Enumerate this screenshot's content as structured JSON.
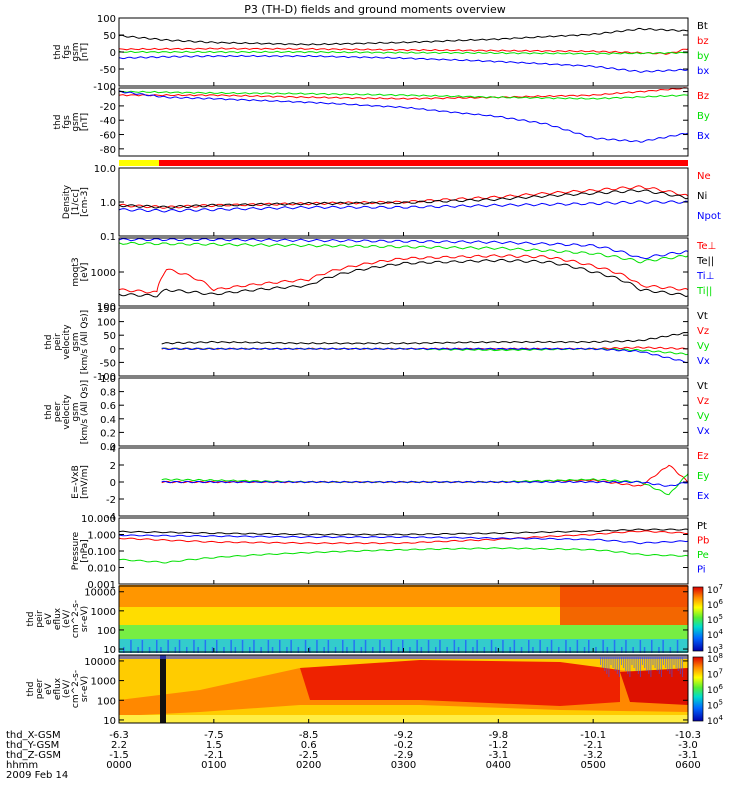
{
  "title": "P3 (TH-D) fields and ground moments overview",
  "colors": {
    "black": "#000000",
    "red": "#ff0000",
    "green": "#00e000",
    "blue": "#0000ff",
    "yellow": "#ffff00",
    "frame": "#000000"
  },
  "chart_data": [
    {
      "type": "line",
      "ylabel": [
        "thd",
        "fgs",
        "gsm",
        "[nT]"
      ],
      "ylim": [
        -100,
        100
      ],
      "log": false,
      "ticks": [
        "100",
        "50",
        "0",
        "-50",
        "-100"
      ],
      "tick_values": [
        100,
        50,
        0,
        -50,
        -100
      ],
      "legend": [
        [
          "Bt",
          "black"
        ],
        [
          "bz",
          "red"
        ],
        [
          "by",
          "green"
        ],
        [
          "bx",
          "blue"
        ]
      ],
      "series": [
        {
          "name": "Bt",
          "color": "black",
          "x": [
            0,
            0.5,
            1,
            2,
            3,
            4,
            5,
            5.5,
            6
          ],
          "y": [
            48,
            35,
            28,
            22,
            28,
            38,
            52,
            68,
            62
          ]
        },
        {
          "name": "bz",
          "color": "red",
          "x": [
            0,
            1,
            2,
            3,
            4,
            5,
            5.8,
            6
          ],
          "y": [
            8,
            10,
            9,
            6,
            4,
            2,
            -5,
            10
          ]
        },
        {
          "name": "by",
          "color": "green",
          "x": [
            0,
            1,
            2,
            3,
            4,
            5,
            6
          ],
          "y": [
            0,
            0,
            0,
            -2,
            -3,
            -5,
            -2
          ]
        },
        {
          "name": "bx",
          "color": "blue",
          "x": [
            0,
            0.5,
            1,
            2,
            3,
            4,
            5,
            5.5,
            6
          ],
          "y": [
            -18,
            -14,
            -12,
            -12,
            -18,
            -28,
            -42,
            -58,
            -52
          ]
        }
      ]
    },
    {
      "type": "line",
      "ylabel": [
        "thd",
        "fgs",
        "gsm",
        "[nT]"
      ],
      "ylim": [
        -90,
        5
      ],
      "log": false,
      "ticks": [
        "0",
        "-20",
        "-40",
        "-60",
        "-80"
      ],
      "tick_values": [
        0,
        -20,
        -40,
        -60,
        -80
      ],
      "legend": [
        [
          "Bz",
          "red"
        ],
        [
          "By",
          "green"
        ],
        [
          "Bx",
          "blue"
        ]
      ],
      "series": [
        {
          "name": "Bz",
          "color": "red",
          "x": [
            0,
            1,
            2,
            3,
            4,
            5,
            6
          ],
          "y": [
            -5,
            -5,
            -8,
            -10,
            -8,
            -5,
            5
          ]
        },
        {
          "name": "By",
          "color": "green",
          "x": [
            0,
            1,
            2,
            3,
            4,
            5,
            6
          ],
          "y": [
            0,
            -2,
            -3,
            -5,
            -8,
            -10,
            -5
          ]
        },
        {
          "name": "Bx",
          "color": "blue",
          "x": [
            0,
            0.5,
            1,
            2,
            3,
            4,
            4.5,
            5,
            5.5,
            6
          ],
          "y": [
            0,
            -8,
            -10,
            -15,
            -22,
            -35,
            -45,
            -65,
            -70,
            -58
          ]
        }
      ]
    },
    {
      "type": "line",
      "ylabel": [
        "Density",
        "[1/cc]",
        "[cm-3]"
      ],
      "ylim": [
        0.1,
        10
      ],
      "log": true,
      "ticks": [
        "10.0",
        "1.0",
        "0.1"
      ],
      "tick_values": [
        10,
        1,
        0.1
      ],
      "legend": [
        [
          "Ne",
          "red"
        ],
        [
          "Ni",
          "black"
        ],
        [
          "Npot",
          "blue"
        ]
      ],
      "series": [
        {
          "name": "Ne",
          "color": "red",
          "x": [
            0,
            0.5,
            1,
            2,
            3,
            4,
            5,
            5.5,
            6
          ],
          "y": [
            0.8,
            0.7,
            0.8,
            0.9,
            1.0,
            1.4,
            2.2,
            2.8,
            1.5
          ]
        },
        {
          "name": "Ni",
          "color": "black",
          "x": [
            0,
            0.5,
            1,
            2,
            3,
            4,
            5,
            5.5,
            6
          ],
          "y": [
            0.8,
            0.7,
            0.8,
            0.9,
            0.95,
            1.2,
            1.8,
            2.2,
            1.3
          ]
        },
        {
          "name": "Npot",
          "color": "blue",
          "x": [
            0,
            0.5,
            1,
            2,
            3,
            4,
            5,
            5.5,
            6
          ],
          "y": [
            0.6,
            0.55,
            0.6,
            0.7,
            0.7,
            0.8,
            0.9,
            1.0,
            1.0
          ]
        }
      ]
    },
    {
      "type": "line",
      "ylabel": [
        "moqt3",
        "[eV]"
      ],
      "ylim": [
        100,
        10000
      ],
      "log": true,
      "ticks": [
        "1000",
        "100"
      ],
      "tick_values": [
        1000,
        100
      ],
      "legend": [
        [
          "Te⊥",
          "red"
        ],
        [
          "Te||",
          "black"
        ],
        [
          "Ti⊥",
          "blue"
        ],
        [
          "Ti||",
          "green"
        ]
      ],
      "series": [
        {
          "name": "Te⊥",
          "color": "red",
          "x": [
            0,
            0.4,
            0.5,
            1,
            2,
            3,
            4,
            4.5,
            5,
            5.5,
            6
          ],
          "y": [
            300,
            250,
            1200,
            300,
            600,
            2500,
            3000,
            2800,
            1500,
            400,
            300
          ]
        },
        {
          "name": "Te||",
          "color": "black",
          "x": [
            0,
            0.4,
            0.5,
            1,
            2,
            3,
            4,
            4.5,
            5,
            5.5,
            6
          ],
          "y": [
            220,
            200,
            300,
            220,
            400,
            1800,
            2200,
            2000,
            1000,
            300,
            200
          ]
        },
        {
          "name": "Ti⊥",
          "color": "blue",
          "x": [
            0,
            1,
            2,
            3,
            4,
            5,
            5.5,
            6
          ],
          "y": [
            9000,
            9000,
            8500,
            8000,
            7500,
            6000,
            2500,
            4000
          ]
        },
        {
          "name": "Ti||",
          "color": "green",
          "x": [
            0,
            1,
            2,
            3,
            4,
            5,
            5.5,
            6
          ],
          "y": [
            7000,
            6500,
            6000,
            5500,
            5000,
            3500,
            2000,
            3000
          ]
        }
      ]
    },
    {
      "type": "line",
      "ylabel": [
        "thd",
        "peir",
        "velocity",
        "gsm",
        "[km/s (All Qs)]"
      ],
      "ylim": [
        -100,
        150
      ],
      "log": false,
      "ticks": [
        "150",
        "100",
        "50",
        "0",
        "-50",
        "-100"
      ],
      "tick_values": [
        150,
        100,
        50,
        0,
        -50,
        -100
      ],
      "legend": [
        [
          "Vt",
          "black"
        ],
        [
          "Vz",
          "red"
        ],
        [
          "Vy",
          "green"
        ],
        [
          "Vx",
          "blue"
        ]
      ],
      "series": [
        {
          "name": "Vt",
          "color": "black",
          "x": [
            0.45,
            1,
            2,
            3,
            4,
            5,
            5.5,
            6
          ],
          "y": [
            20,
            25,
            20,
            20,
            25,
            25,
            30,
            60
          ]
        },
        {
          "name": "Vz",
          "color": "red",
          "x": [
            0.45,
            1,
            2,
            3,
            4,
            5,
            5.5,
            6
          ],
          "y": [
            0,
            0,
            0,
            0,
            0,
            0,
            5,
            0
          ]
        },
        {
          "name": "Vy",
          "color": "green",
          "x": [
            0.45,
            1,
            2,
            3,
            4,
            5,
            5.5,
            6
          ],
          "y": [
            0,
            0,
            0,
            0,
            -5,
            0,
            -5,
            -20
          ]
        },
        {
          "name": "Vx",
          "color": "blue",
          "x": [
            0.45,
            1,
            2,
            3,
            4,
            5,
            5.5,
            6
          ],
          "y": [
            0,
            0,
            0,
            0,
            0,
            0,
            -10,
            -50
          ]
        }
      ]
    },
    {
      "type": "line",
      "ylabel": [
        "thd",
        "peer",
        "velocity",
        "gsm",
        "[km/s (All Qs)]"
      ],
      "ylim": [
        0,
        1
      ],
      "log": false,
      "ticks": [
        "1.0",
        "0.8",
        "0.6",
        "0.4",
        "0.2",
        "0.0"
      ],
      "tick_values": [
        1,
        0.8,
        0.6,
        0.4,
        0.2,
        0
      ],
      "legend": [
        [
          "Vt",
          "black"
        ],
        [
          "Vz",
          "red"
        ],
        [
          "Vy",
          "green"
        ],
        [
          "Vx",
          "blue"
        ]
      ],
      "series": []
    },
    {
      "type": "line",
      "ylabel": [
        "E=-VxB",
        "[mV/m]"
      ],
      "ylim": [
        -4,
        4
      ],
      "log": false,
      "ticks": [
        "4",
        "2",
        "0",
        "-2",
        "-4"
      ],
      "tick_values": [
        4,
        2,
        0,
        -2,
        -4
      ],
      "legend": [
        [
          "Ez",
          "red"
        ],
        [
          "Ey",
          "green"
        ],
        [
          "Ex",
          "blue"
        ]
      ],
      "series": [
        {
          "name": "Ez",
          "color": "red",
          "x": [
            0.45,
            1,
            2,
            3,
            4,
            5,
            5.5,
            5.8,
            6
          ],
          "y": [
            0,
            0,
            0,
            0,
            0,
            0.2,
            -0.5,
            2,
            0
          ]
        },
        {
          "name": "Ey",
          "color": "green",
          "x": [
            0.45,
            1,
            2,
            3,
            4,
            5,
            5.5,
            5.8,
            6
          ],
          "y": [
            0.3,
            0.2,
            0,
            0,
            0,
            0.3,
            0,
            -1.5,
            1
          ]
        },
        {
          "name": "Ex",
          "color": "blue",
          "x": [
            0.45,
            1,
            2,
            3,
            4,
            5,
            5.5,
            5.8,
            6
          ],
          "y": [
            0,
            0,
            0,
            0,
            0,
            0,
            0,
            -0.5,
            0
          ]
        }
      ]
    },
    {
      "type": "line",
      "ylabel": [
        "Pressure",
        "[nPa]"
      ],
      "ylim": [
        0.001,
        10
      ],
      "log": true,
      "ticks": [
        "10.000",
        "1.000",
        "0.100",
        "0.010",
        "0.001"
      ],
      "tick_values": [
        10,
        1,
        0.1,
        0.01,
        0.001
      ],
      "legend": [
        [
          "Pt",
          "black"
        ],
        [
          "Pb",
          "red"
        ],
        [
          "Pe",
          "green"
        ],
        [
          "Pi",
          "blue"
        ]
      ],
      "series": [
        {
          "name": "Pt",
          "color": "black",
          "x": [
            0,
            1,
            2,
            3,
            4,
            5,
            5.5,
            6
          ],
          "y": [
            1.5,
            1.2,
            1.0,
            1.0,
            1.2,
            1.6,
            2.0,
            2.0
          ]
        },
        {
          "name": "Pb",
          "color": "red",
          "x": [
            0,
            0.5,
            1,
            2,
            3,
            4,
            5,
            5.5,
            6
          ],
          "y": [
            0.6,
            0.45,
            0.35,
            0.3,
            0.3,
            0.5,
            1.0,
            1.6,
            1.2
          ]
        },
        {
          "name": "Pe",
          "color": "green",
          "x": [
            0,
            0.5,
            1,
            2,
            3,
            4,
            5,
            5.5,
            6
          ],
          "y": [
            0.03,
            0.02,
            0.04,
            0.08,
            0.12,
            0.15,
            0.12,
            0.06,
            0.05
          ]
        },
        {
          "name": "Pi",
          "color": "blue",
          "x": [
            0,
            1,
            2,
            3,
            4,
            5,
            5.5,
            6
          ],
          "y": [
            0.9,
            0.8,
            0.7,
            0.7,
            0.6,
            0.5,
            0.3,
            0.4
          ]
        }
      ]
    },
    {
      "type": "heatmap",
      "ylabel": [
        "thd",
        "peir",
        "eV",
        "eflux",
        "(eV/",
        "cm^2-s-",
        "sr-eV)"
      ],
      "ylim": [
        7,
        20000
      ],
      "log": true,
      "ticks": [
        "10000",
        "1000",
        "100",
        "10"
      ],
      "tick_values": [
        10000,
        1000,
        100,
        10
      ],
      "colorbar": [
        "10^7",
        "10^6",
        "10^5",
        "10^4",
        "10^3"
      ],
      "colorbar_values": [
        7,
        6,
        5,
        4,
        3
      ]
    },
    {
      "type": "heatmap",
      "ylabel": [
        "thd",
        "peer",
        "eV",
        "eflux",
        "(eV/",
        "cm^2-s-",
        "sr-eV)"
      ],
      "ylim": [
        7,
        20000
      ],
      "log": true,
      "ticks": [
        "10000",
        "1000",
        "100",
        "10"
      ],
      "tick_values": [
        10000,
        1000,
        100,
        10
      ],
      "colorbar": [
        "10^8",
        "10^7",
        "10^6",
        "10^5",
        "10^4"
      ],
      "colorbar_values": [
        8,
        7,
        6,
        5,
        4
      ]
    }
  ],
  "xaxis": {
    "rows": [
      {
        "label": "thd_X-GSM",
        "values": [
          "-6.3",
          "-7.5",
          "-8.5",
          "-9.2",
          "-9.8",
          "-10.1",
          "-10.3"
        ]
      },
      {
        "label": "thd_Y-GSM",
        "values": [
          "2.2",
          "1.5",
          "0.6",
          "-0.2",
          "-1.2",
          "-2.1",
          "-3.0"
        ]
      },
      {
        "label": "thd_Z-GSM",
        "values": [
          "-1.5",
          "-2.1",
          "-2.5",
          "-2.9",
          "-3.1",
          "-3.2",
          "-3.1"
        ]
      },
      {
        "label": "hhmm",
        "values": [
          "0000",
          "0100",
          "0200",
          "0300",
          "0400",
          "0500",
          "0600"
        ]
      }
    ],
    "date": "2009 Feb 14",
    "tick_hours": [
      0,
      1,
      2,
      3,
      4,
      5,
      6
    ]
  }
}
